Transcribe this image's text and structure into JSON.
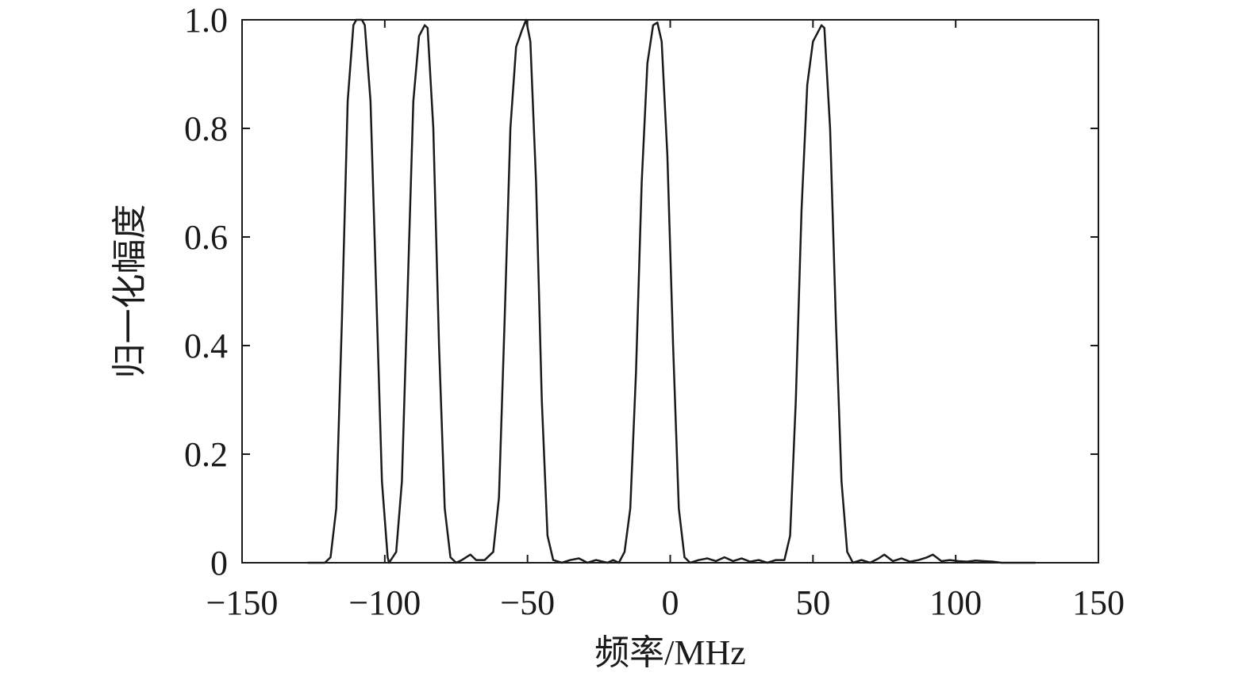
{
  "chart_data": {
    "type": "line",
    "xlabel": "频率/MHz",
    "ylabel": "归一化幅度",
    "xlim": [
      -150,
      150
    ],
    "ylim": [
      0,
      1
    ],
    "xticks": [
      {
        "value": -150,
        "label": "−150"
      },
      {
        "value": -100,
        "label": "−100"
      },
      {
        "value": -50,
        "label": "−50"
      },
      0,
      50,
      100,
      150
    ],
    "yticks": [
      0,
      0.2,
      0.4,
      0.6,
      0.8,
      {
        "value": 1,
        "label": "1.0"
      }
    ],
    "color": "#1a1a1a",
    "x": [
      -127,
      -121,
      -119,
      -117,
      -115,
      -113,
      -111,
      -110,
      -108,
      -107,
      -105,
      -103,
      -101,
      -99,
      -98.5,
      -96,
      -94,
      -92,
      -90,
      -88,
      -86,
      -85,
      -83,
      -81,
      -79,
      -77,
      -75,
      -73,
      -70,
      -68,
      -65,
      -62,
      -60,
      -58,
      -56,
      -54,
      -52,
      -50.5,
      -49,
      -47,
      -45,
      -43,
      -41,
      -38,
      -35,
      -32,
      -29,
      -26,
      -22,
      -20,
      -18,
      -16,
      -14,
      -12,
      -10,
      -8,
      -6,
      -4.5,
      -3,
      -1,
      1,
      3,
      5,
      7,
      10,
      13,
      16,
      19,
      22,
      25,
      28,
      31,
      34,
      37,
      40,
      42,
      44,
      46,
      48,
      50,
      52,
      53,
      54,
      56,
      58,
      60,
      62,
      64,
      67,
      70,
      73,
      75,
      78,
      81,
      84,
      87,
      90,
      92,
      95,
      98,
      101,
      104,
      107,
      110,
      113,
      116,
      122,
      128
    ],
    "values": [
      0,
      0,
      0.01,
      0.1,
      0.45,
      0.85,
      0.99,
      1.0,
      1.0,
      0.99,
      0.85,
      0.5,
      0.15,
      0.01,
      0,
      0.02,
      0.15,
      0.5,
      0.85,
      0.97,
      0.99,
      0.985,
      0.8,
      0.4,
      0.1,
      0.01,
      0,
      0.005,
      0.015,
      0.005,
      0.005,
      0.02,
      0.12,
      0.45,
      0.8,
      0.95,
      0.98,
      1.0,
      0.96,
      0.7,
      0.3,
      0.05,
      0.005,
      0,
      0.005,
      0.008,
      0,
      0.005,
      0,
      0.005,
      0,
      0.02,
      0.1,
      0.35,
      0.7,
      0.92,
      0.99,
      0.995,
      0.96,
      0.75,
      0.4,
      0.1,
      0.01,
      0,
      0.005,
      0.008,
      0.003,
      0.01,
      0.003,
      0.008,
      0.002,
      0.005,
      0,
      0.005,
      0.005,
      0.05,
      0.3,
      0.65,
      0.88,
      0.96,
      0.98,
      0.99,
      0.985,
      0.8,
      0.45,
      0.15,
      0.02,
      0,
      0.005,
      0,
      0.008,
      0.015,
      0.003,
      0.008,
      0.002,
      0.005,
      0.01,
      0.015,
      0.003,
      0.005,
      0.003,
      0.002,
      0.004,
      0.003,
      0.002,
      0,
      0,
      0
    ]
  }
}
